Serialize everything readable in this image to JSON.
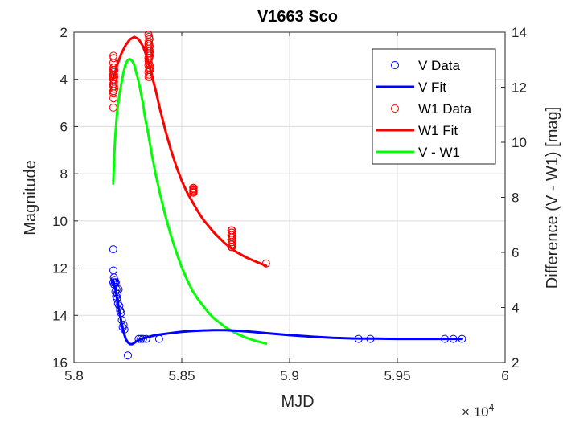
{
  "chart_data": {
    "type": "line",
    "title": "V1663 Sco",
    "xlabel": "MJD",
    "ylabel_left": "Magnitude",
    "ylabel_right": "Difference (V - W1) [mag]",
    "x_multiplier_base": "× 10",
    "x_multiplier_exp": "4",
    "x_range": [
      58000,
      60000
    ],
    "y_left_range": [
      2,
      16
    ],
    "y_left_reversed": true,
    "y_right_range": [
      2,
      14
    ],
    "grid": true,
    "legend_position": "top-right",
    "x_ticks": [
      {
        "value": 58000,
        "label": "5.8"
      },
      {
        "value": 58500,
        "label": "5.85"
      },
      {
        "value": 59000,
        "label": "5.9"
      },
      {
        "value": 59500,
        "label": "5.95"
      },
      {
        "value": 60000,
        "label": "6"
      }
    ],
    "y_left_ticks": [
      {
        "value": 2,
        "label": "2"
      },
      {
        "value": 4,
        "label": "4"
      },
      {
        "value": 6,
        "label": "6"
      },
      {
        "value": 8,
        "label": "8"
      },
      {
        "value": 10,
        "label": "10"
      },
      {
        "value": 12,
        "label": "12"
      },
      {
        "value": 14,
        "label": "14"
      },
      {
        "value": 16,
        "label": "16"
      }
    ],
    "y_right_ticks": [
      {
        "value": 2,
        "label": "2"
      },
      {
        "value": 4,
        "label": "4"
      },
      {
        "value": 6,
        "label": "6"
      },
      {
        "value": 8,
        "label": "8"
      },
      {
        "value": 10,
        "label": "10"
      },
      {
        "value": 12,
        "label": "12"
      },
      {
        "value": 14,
        "label": "14"
      }
    ],
    "series": [
      {
        "name": "V Data",
        "kind": "scatter",
        "axis": "left",
        "color": "#0000ff",
        "x": [
          58182,
          58183,
          58183,
          58185,
          58187,
          58188,
          58190,
          58192,
          58194,
          58196,
          58197,
          58199,
          58201,
          58204,
          58207,
          58210,
          58214,
          58218,
          58222,
          58226,
          58230,
          58234,
          58250,
          58300,
          58310,
          58320,
          58335,
          58395,
          59320,
          59375,
          59720,
          59760,
          59800
        ],
        "y": [
          11.2,
          12.1,
          12.6,
          12.4,
          12.7,
          12.5,
          12.6,
          13.0,
          12.6,
          13.2,
          12.9,
          13.3,
          13.1,
          13.5,
          12.9,
          13.6,
          13.8,
          13.9,
          14.2,
          14.5,
          14.4,
          14.6,
          15.7,
          15.0,
          15.0,
          15.0,
          15.0,
          15.0,
          15.0,
          15.0,
          15.0,
          15.0,
          15.0
        ]
      },
      {
        "name": "V Fit",
        "kind": "line",
        "axis": "left",
        "color": "#0000ff",
        "x": [
          58182,
          58190,
          58200,
          58210,
          58220,
          58230,
          58240,
          58250,
          58260,
          58270,
          58280,
          58290,
          58300,
          58320,
          58340,
          58360,
          58380,
          58400,
          58450,
          58500,
          58550,
          58600,
          58650,
          58700,
          58750,
          58800,
          58850,
          58900,
          58950,
          59000,
          59100,
          59200,
          59300,
          59400,
          59500,
          59600,
          59700,
          59800
        ],
        "y": [
          12.5,
          12.8,
          13.3,
          13.8,
          14.3,
          14.7,
          15.0,
          15.15,
          15.22,
          15.22,
          15.17,
          15.1,
          15.05,
          14.98,
          14.93,
          14.88,
          14.84,
          14.81,
          14.75,
          14.7,
          14.66,
          14.64,
          14.63,
          14.63,
          14.65,
          14.68,
          14.72,
          14.76,
          14.8,
          14.84,
          14.9,
          14.95,
          14.98,
          14.99,
          15.0,
          15.0,
          15.0,
          15.0
        ]
      },
      {
        "name": "W1 Data",
        "kind": "scatter",
        "axis": "left",
        "color": "#ff0000",
        "x": [
          58182,
          58182,
          58182,
          58182,
          58182,
          58182,
          58182,
          58183,
          58183,
          58183,
          58183,
          58183,
          58183,
          58184,
          58184,
          58184,
          58184,
          58185,
          58185,
          58186,
          58186,
          58186,
          58187,
          58187,
          58187,
          58345,
          58345,
          58345,
          58345,
          58345,
          58345,
          58346,
          58346,
          58346,
          58347,
          58347,
          58347,
          58348,
          58348,
          58348,
          58348,
          58349,
          58349,
          58349,
          58350,
          58350,
          58350,
          58351,
          58351,
          58351,
          58351,
          58352,
          58352,
          58553,
          58553,
          58553,
          58554,
          58554,
          58554,
          58555,
          58555,
          58555,
          58555,
          58730,
          58730,
          58730,
          58730,
          58730,
          58731,
          58731,
          58731,
          58731,
          58731,
          58732,
          58732,
          58732,
          58732,
          58733,
          58733,
          58733,
          58733,
          58891
        ],
        "y": [
          5.2,
          3.3,
          3.6,
          3.8,
          4.0,
          4.2,
          4.5,
          3.0,
          3.5,
          3.9,
          4.3,
          4.6,
          4.8,
          3.1,
          3.7,
          4.0,
          4.5,
          3.5,
          4.2,
          3.8,
          4.1,
          4.3,
          3.6,
          3.9,
          4.4,
          2.1,
          2.5,
          2.8,
          3.1,
          3.4,
          3.7,
          2.6,
          3.2,
          3.9,
          2.4,
          2.9,
          3.3,
          2.2,
          2.7,
          3.0,
          3.6,
          2.5,
          3.1,
          3.8,
          2.3,
          2.9,
          3.5,
          2.6,
          3.0,
          3.4,
          3.9,
          2.8,
          3.6,
          8.6,
          8.7,
          8.8,
          8.65,
          8.75,
          8.8,
          8.6,
          8.7,
          8.75,
          8.8,
          10.4,
          10.6,
          10.8,
          11.0,
          11.1,
          10.5,
          10.7,
          10.9,
          11.0,
          11.1,
          10.5,
          10.6,
          10.8,
          11.0,
          10.4,
          10.7,
          10.9,
          11.1,
          11.8
        ]
      },
      {
        "name": "W1 Fit",
        "kind": "line",
        "axis": "left",
        "color": "#ff0000",
        "x": [
          58182,
          58200,
          58220,
          58240,
          58260,
          58280,
          58300,
          58320,
          58340,
          58360,
          58380,
          58400,
          58425,
          58450,
          58475,
          58500,
          58525,
          58550,
          58575,
          58600,
          58650,
          58700,
          58750,
          58800,
          58850,
          58891
        ],
        "y": [
          4.0,
          3.4,
          2.9,
          2.55,
          2.3,
          2.2,
          2.3,
          2.6,
          3.1,
          3.8,
          4.5,
          5.3,
          6.2,
          7.0,
          7.7,
          8.3,
          8.8,
          9.2,
          9.6,
          9.95,
          10.5,
          10.95,
          11.3,
          11.55,
          11.75,
          11.9
        ]
      },
      {
        "name": "V - W1",
        "kind": "line",
        "axis": "right",
        "color": "#00ff00",
        "x": [
          58182,
          58185,
          58190,
          58195,
          58200,
          58210,
          58220,
          58230,
          58240,
          58250,
          58260,
          58270,
          58280,
          58290,
          58300,
          58310,
          58320,
          58330,
          58340,
          58360,
          58380,
          58400,
          58425,
          58450,
          58475,
          58500,
          58525,
          58550,
          58575,
          58600,
          58625,
          58650,
          58675,
          58700,
          58725,
          58750,
          58775,
          58800,
          58825,
          58850,
          58875,
          58891
        ],
        "y": [
          8.5,
          9.2,
          10.0,
          10.6,
          11.1,
          11.7,
          12.15,
          12.55,
          12.85,
          13.0,
          13.02,
          12.95,
          12.8,
          12.5,
          12.2,
          11.8,
          11.4,
          10.9,
          10.5,
          9.6,
          8.8,
          8.1,
          7.3,
          6.6,
          6.0,
          5.45,
          5.0,
          4.6,
          4.3,
          4.05,
          3.8,
          3.6,
          3.45,
          3.3,
          3.18,
          3.07,
          2.98,
          2.9,
          2.83,
          2.77,
          2.72,
          2.69
        ]
      }
    ],
    "legend": [
      {
        "name": "V Data",
        "style": "marker",
        "color": "#0000ff"
      },
      {
        "name": "V Fit",
        "style": "line",
        "color": "#0000ff"
      },
      {
        "name": "W1 Data",
        "style": "marker",
        "color": "#ff0000"
      },
      {
        "name": "W1 Fit",
        "style": "line",
        "color": "#ff0000"
      },
      {
        "name": "V - W1",
        "style": "line",
        "color": "#00ff00"
      }
    ]
  }
}
